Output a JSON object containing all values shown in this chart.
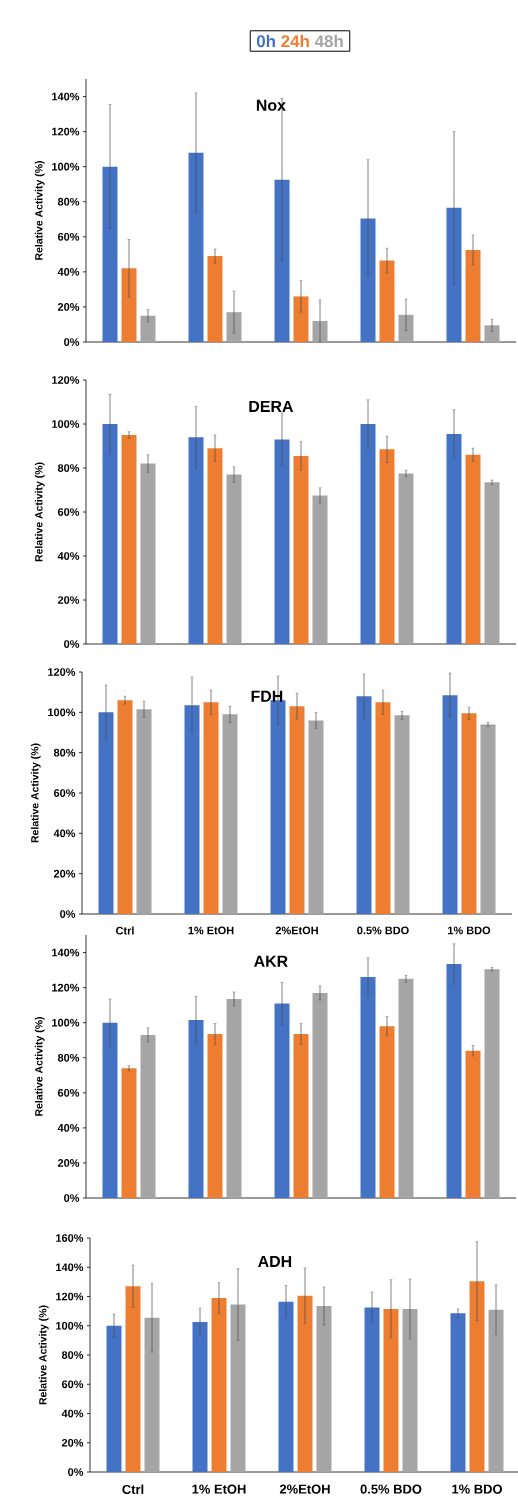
{
  "chart_data": [
    {
      "type": "bar",
      "title": "Nox",
      "ylabel": "Relative Activity (%)",
      "legend": "top",
      "categories": [
        null,
        null,
        null,
        null,
        null
      ],
      "ylim": [
        0,
        150
      ],
      "yticks": [
        {
          "value": 0,
          "label": "0%"
        },
        {
          "value": 20,
          "label": "20%"
        },
        {
          "value": 40,
          "label": "40%"
        },
        {
          "value": 60,
          "label": "60%"
        },
        {
          "value": 80,
          "label": "80%"
        },
        {
          "value": 100,
          "label": "100%"
        },
        {
          "value": 120,
          "label": "120%"
        },
        {
          "value": 140,
          "label": "140%"
        }
      ],
      "series": [
        {
          "name": "0h",
          "color": "#4472c4",
          "values": [
            100,
            108,
            92.5,
            70.5,
            76.5
          ],
          "errors": [
            35.5,
            34,
            46.5,
            33.5,
            43.5
          ]
        },
        {
          "name": "24h",
          "color": "#ed7d31",
          "values": [
            42,
            49,
            26,
            46.5,
            52.5
          ],
          "errors": [
            16.5,
            4,
            9,
            7,
            8.5
          ]
        },
        {
          "name": "48h",
          "color": "#a5a5a5",
          "values": [
            15,
            17,
            12,
            15.5,
            9.5
          ],
          "errors": [
            3.5,
            12,
            12,
            9,
            3.5
          ]
        }
      ]
    },
    {
      "type": "bar",
      "title": "DERA",
      "ylabel": "Relative Activity (%)",
      "categories": [
        null,
        null,
        null,
        null,
        null
      ],
      "ylim": [
        0,
        120
      ],
      "yticks": [
        {
          "value": 0,
          "label": "0%"
        },
        {
          "value": 20,
          "label": "20%"
        },
        {
          "value": 40,
          "label": "40%"
        },
        {
          "value": 60,
          "label": "60%"
        },
        {
          "value": 80,
          "label": "80%"
        },
        {
          "value": 100,
          "label": "100%"
        },
        {
          "value": 120,
          "label": "120%"
        }
      ],
      "series": [
        {
          "color": "#4472c4",
          "values": [
            100,
            94,
            93,
            100,
            95.5
          ],
          "errors": [
            13.5,
            14,
            12,
            11,
            11
          ]
        },
        {
          "color": "#ed7d31",
          "values": [
            95,
            89,
            85.5,
            88.5,
            86
          ],
          "errors": [
            1.5,
            6,
            6.5,
            6,
            3
          ]
        },
        {
          "color": "#a5a5a5",
          "values": [
            82,
            77,
            67.5,
            77.5,
            73.5
          ],
          "errors": [
            4,
            3.5,
            3.5,
            1.5,
            1
          ]
        }
      ]
    },
    {
      "type": "bar",
      "title": "FDH",
      "ylabel": "Relative Activity (%)",
      "categories": [
        "Ctrl",
        "1% EtOH",
        "2%EtOH",
        "0.5% BDO",
        "1% BDO"
      ],
      "ylim": [
        0,
        120
      ],
      "yticks": [
        {
          "value": 0,
          "label": "0%"
        },
        {
          "value": 20,
          "label": "20%"
        },
        {
          "value": 40,
          "label": "40%"
        },
        {
          "value": 60,
          "label": "60%"
        },
        {
          "value": 80,
          "label": "80%"
        },
        {
          "value": 100,
          "label": "100%"
        },
        {
          "value": 120,
          "label": "120%"
        }
      ],
      "series": [
        {
          "color": "#4472c4",
          "values": [
            100,
            103.5,
            106,
            108,
            108.5
          ],
          "errors": [
            13.5,
            14,
            12,
            11,
            11
          ]
        },
        {
          "color": "#ed7d31",
          "values": [
            106,
            105,
            103,
            105,
            99.5
          ],
          "errors": [
            2,
            6,
            6.5,
            6,
            3
          ]
        },
        {
          "color": "#a5a5a5",
          "values": [
            101.5,
            99,
            96,
            98.5,
            94
          ],
          "errors": [
            4,
            4,
            4,
            2,
            1
          ]
        }
      ]
    },
    {
      "type": "bar",
      "title": "AKR",
      "ylabel": "Relative Activity (%)",
      "categories": [
        null,
        null,
        null,
        null,
        null
      ],
      "ylim": [
        0,
        150
      ],
      "yticks": [
        {
          "value": 0,
          "label": "0%"
        },
        {
          "value": 20,
          "label": "20%"
        },
        {
          "value": 40,
          "label": "40%"
        },
        {
          "value": 60,
          "label": "60%"
        },
        {
          "value": 80,
          "label": "80%"
        },
        {
          "value": 100,
          "label": "100%"
        },
        {
          "value": 120,
          "label": "120%"
        },
        {
          "value": 140,
          "label": "140%"
        }
      ],
      "series": [
        {
          "color": "#4472c4",
          "values": [
            100,
            101.5,
            111,
            126,
            133.5
          ],
          "errors": [
            13.5,
            13.5,
            12,
            11,
            11.5
          ]
        },
        {
          "color": "#ed7d31",
          "values": [
            74,
            93.5,
            93.5,
            98,
            84
          ],
          "errors": [
            1.5,
            6,
            6,
            5.5,
            3
          ]
        },
        {
          "color": "#a5a5a5",
          "values": [
            93,
            113.5,
            117,
            125,
            130.5
          ],
          "errors": [
            4,
            4,
            4,
            2,
            1
          ]
        }
      ]
    },
    {
      "type": "bar",
      "title": "ADH",
      "ylabel": "Relative Activity (%)",
      "categories": [
        "Ctrl",
        "1% EtOH",
        "2%EtOH",
        "0.5% BDO",
        "1% BDO"
      ],
      "ylim": [
        0,
        160
      ],
      "yticks": [
        {
          "value": 0,
          "label": "0%"
        },
        {
          "value": 20,
          "label": "20%"
        },
        {
          "value": 40,
          "label": "40%"
        },
        {
          "value": 60,
          "label": "60%"
        },
        {
          "value": 80,
          "label": "80%"
        },
        {
          "value": 100,
          "label": "100%"
        },
        {
          "value": 120,
          "label": "120%"
        },
        {
          "value": 140,
          "label": "140%"
        },
        {
          "value": 160,
          "label": "160%"
        }
      ],
      "series": [
        {
          "color": "#4472c4",
          "values": [
            100,
            102.5,
            116.5,
            112.5,
            108.5
          ],
          "errors": [
            8,
            9.5,
            11,
            10.5,
            3
          ]
        },
        {
          "color": "#ed7d31",
          "values": [
            127,
            119,
            120.5,
            111.5,
            130.5
          ],
          "errors": [
            14.5,
            10.5,
            19,
            20,
            27
          ]
        },
        {
          "color": "#a5a5a5",
          "values": [
            105.5,
            114.5,
            113.5,
            111.5,
            111
          ],
          "errors": [
            23.5,
            24.5,
            13,
            20.5,
            17
          ]
        }
      ]
    }
  ]
}
